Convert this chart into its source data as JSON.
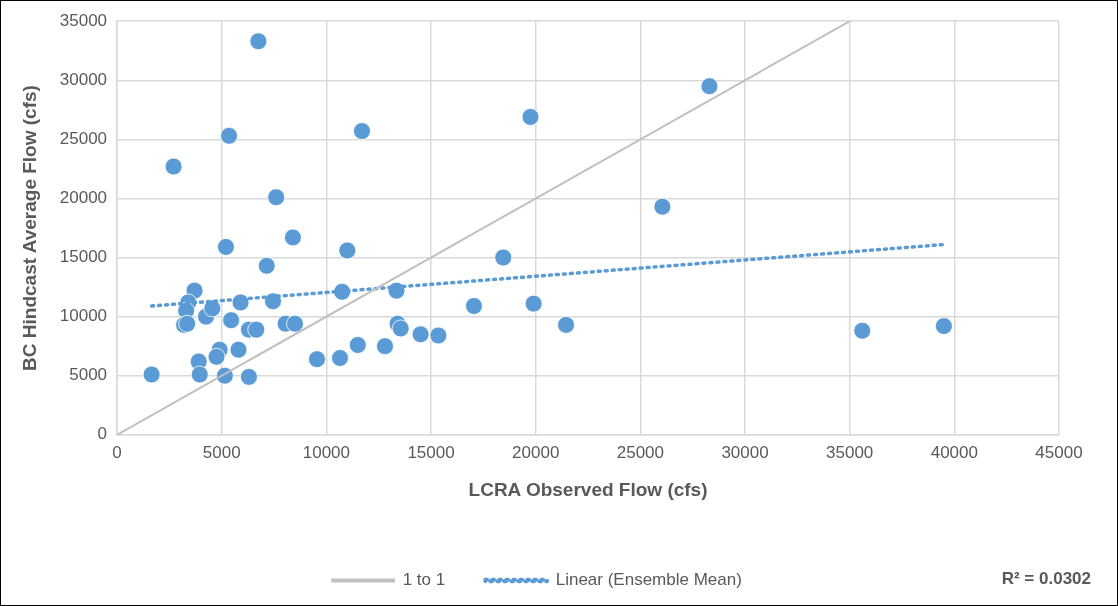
{
  "chart_data": {
    "type": "scatter",
    "xlabel": "LCRA Observed Flow (cfs)",
    "ylabel": "BC Hindcast Average Flow (cfs)",
    "xlim": [
      0,
      45000
    ],
    "xticks": [
      0,
      5000,
      10000,
      15000,
      20000,
      25000,
      30000,
      35000,
      40000,
      45000
    ],
    "ylim": [
      0,
      35000
    ],
    "yticks": [
      0,
      5000,
      10000,
      15000,
      20000,
      25000,
      30000,
      35000
    ],
    "grid": true,
    "legend": "bottom",
    "marker": "circle",
    "annotations": [
      "R² = 0.0302"
    ],
    "series": [
      {
        "color": "#5b9bd5",
        "x": [
          1650,
          2700,
          3700,
          3400,
          3300,
          3200,
          3350,
          4250,
          4550,
          4900,
          4750,
          3900,
          3950,
          5200,
          6300,
          5350,
          5450,
          5150,
          5800,
          5900,
          6300,
          6650,
          6750,
          7150,
          7450,
          7600,
          8050,
          8400,
          8500,
          9550,
          10650,
          10750,
          11000,
          11500,
          11700,
          12800,
          13350,
          13400,
          13550,
          14500,
          15350,
          17050,
          18450,
          19750,
          19900,
          21450,
          26050,
          28300,
          35600,
          39500
        ],
        "values": [
          5100,
          22700,
          12200,
          11200,
          10500,
          9300,
          9400,
          10000,
          10700,
          7200,
          6600,
          6200,
          5100,
          15900,
          4900,
          25300,
          9700,
          5000,
          7200,
          11200,
          8900,
          8900,
          33300,
          14300,
          11300,
          20100,
          9400,
          16700,
          9400,
          6400,
          6500,
          12100,
          15600,
          7600,
          25700,
          7500,
          12200,
          9400,
          9000,
          8500,
          8400,
          10900,
          15000,
          26900,
          11100,
          9300,
          19300,
          29500,
          8800,
          9200
        ]
      },
      {
        "type": "line",
        "name": "1 to 1",
        "color": "#bfbfbf",
        "line_style": "solid",
        "marker": "none",
        "x": [
          0,
          35000
        ],
        "values": [
          0,
          35000
        ]
      },
      {
        "type": "line",
        "name": "Linear (Ensemble Mean)",
        "color": "#5b9bd5",
        "line_style": "dotted",
        "marker": "none",
        "x": [
          1650,
          39500
        ],
        "values": [
          10900,
          16100
        ]
      }
    ]
  }
}
